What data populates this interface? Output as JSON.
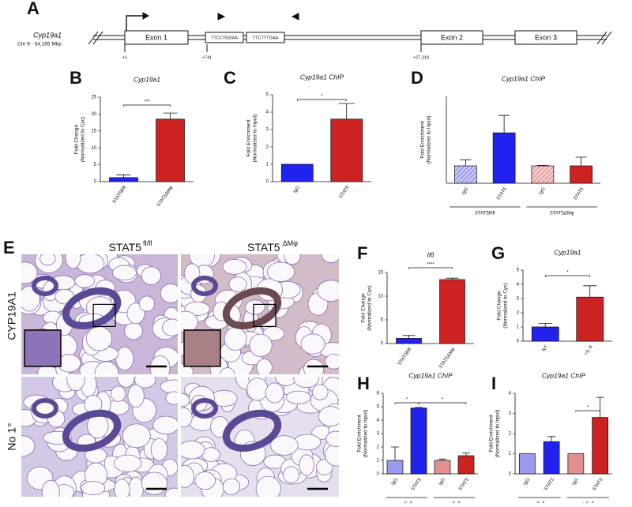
{
  "panel_letters": [
    "A",
    "B",
    "C",
    "D",
    "E",
    "F",
    "G",
    "H",
    "I"
  ],
  "gene_diagram": {
    "gene": "Cyp19a1",
    "location": "Chr 9 - 54.165 Mbp",
    "exons": [
      "Exon 1",
      "Exon 2",
      "Exon 3"
    ],
    "motifs": [
      "TTCCTGGAA",
      "TTCTTTGAA"
    ],
    "positions": [
      "+1",
      "+741",
      "+27,318"
    ]
  },
  "micrographs": {
    "columns": [
      {
        "base": "STAT5",
        "sup": "fl/fl"
      },
      {
        "base": "STAT5",
        "sup": "ΔMφ"
      }
    ],
    "rows": [
      "CYP19A1",
      "No 1°"
    ]
  },
  "chart_data": [
    {
      "type": "bar",
      "title": "Cyp19a1",
      "ylabel": [
        "Fold Change",
        "(Normalized to Cyc)"
      ],
      "categories": [
        "STAT5fl/fl",
        "STAT5ΔMφ"
      ],
      "values": [
        1.2,
        18.5
      ],
      "errors": [
        0.8,
        1.8
      ],
      "colors": [
        "#2222ee",
        "#cc2222"
      ],
      "ylim": [
        0,
        25
      ],
      "yticks": [
        0,
        5,
        10,
        15,
        20,
        25
      ],
      "annotations": [
        "***"
      ]
    },
    {
      "type": "bar",
      "title": "Cyp19a1 ChIP",
      "ylabel": [
        "Fold Enrichment",
        "(Normalized to Input)"
      ],
      "categories": [
        "IgG",
        "STAT5"
      ],
      "values": [
        1,
        3.6
      ],
      "errors": [
        0,
        0.9
      ],
      "colors": [
        "#2222ee",
        "#cc2222"
      ],
      "ylim": [
        0,
        5
      ],
      "yticks": [
        0,
        1,
        2,
        3,
        4,
        5
      ],
      "annotations": [
        "*"
      ]
    },
    {
      "type": "bar",
      "title": "Cyp19a1 ChIP",
      "ylabel": [
        "Fold Enrichment",
        "(Normalized to Input)"
      ],
      "categories": [
        "IgG",
        "STAT5",
        "IgG",
        "STAT5"
      ],
      "values": [
        1.0,
        2.9,
        1.0,
        1.0
      ],
      "errors": [
        0.35,
        1.0,
        0.03,
        0.5
      ],
      "colors": [
        "#8888ee",
        "#2222ee",
        "#e08888",
        "#cc2222"
      ],
      "hatched": [
        true,
        false,
        true,
        false
      ],
      "ylim": [
        0,
        5
      ],
      "groups": [
        "STAT5fl/fl",
        "STAT5ΔMφ"
      ]
    },
    {
      "type": "bar",
      "title": "Il6",
      "ylabel": [
        "Fold Change",
        "(Normalized to Cyc)"
      ],
      "categories": [
        "STAT5fl/fl",
        "STAT5ΔMφ"
      ],
      "values": [
        1.1,
        13.5
      ],
      "errors": [
        0.6,
        0.3
      ],
      "colors": [
        "#2222ee",
        "#cc2222"
      ],
      "ylim": [
        0,
        15
      ],
      "yticks": [
        0,
        5,
        10,
        15
      ],
      "annotations": [
        "****"
      ]
    },
    {
      "type": "bar",
      "title": "Cyp19a1",
      "ylabel": [
        "Fold Change",
        "(Normalized to Cyc)"
      ],
      "categories": [
        "NT",
        "+IL-6"
      ],
      "values": [
        1.0,
        3.1
      ],
      "errors": [
        0.25,
        0.8
      ],
      "colors": [
        "#2222ee",
        "#cc2222"
      ],
      "ylim": [
        0,
        5
      ],
      "yticks": [
        0,
        1,
        2,
        3,
        4,
        5
      ],
      "annotations": [
        "*"
      ]
    },
    {
      "type": "bar",
      "title": "Cyp19a1 ChIP",
      "ylabel": [
        "Fold Enrichment",
        "(Normalized to Input)"
      ],
      "categories": [
        "IgG",
        "STAT5",
        "IgG",
        "STAT5"
      ],
      "values": [
        1.0,
        4.9,
        1.0,
        1.35
      ],
      "errors": [
        1.0,
        0.05,
        0.1,
        0.2
      ],
      "colors": [
        "#9999ee",
        "#2222ee",
        "#e09090",
        "#cc2222"
      ],
      "ylim": [
        0,
        6
      ],
      "yticks": [
        0,
        1,
        2,
        3,
        4,
        5,
        6
      ],
      "groups": [
        "- IL-6",
        "+ IL-6"
      ],
      "annotations": [
        "*",
        "*"
      ]
    },
    {
      "type": "bar",
      "title": "Cyp19a1 ChIP",
      "ylabel": [
        "Fold Enrichment",
        "(Normalized to Input)"
      ],
      "categories": [
        "IgG",
        "STAT3",
        "IgG",
        "STAT3"
      ],
      "values": [
        1.0,
        1.6,
        1.0,
        2.8
      ],
      "errors": [
        0,
        0.25,
        0,
        1.0
      ],
      "colors": [
        "#9999ee",
        "#2222ee",
        "#e09090",
        "#cc2222"
      ],
      "ylim": [
        0,
        4
      ],
      "yticks": [
        0,
        1,
        2,
        3,
        4
      ],
      "groups": [
        "- IL-6",
        "+ IL-6"
      ],
      "annotations": [
        "*"
      ]
    }
  ]
}
